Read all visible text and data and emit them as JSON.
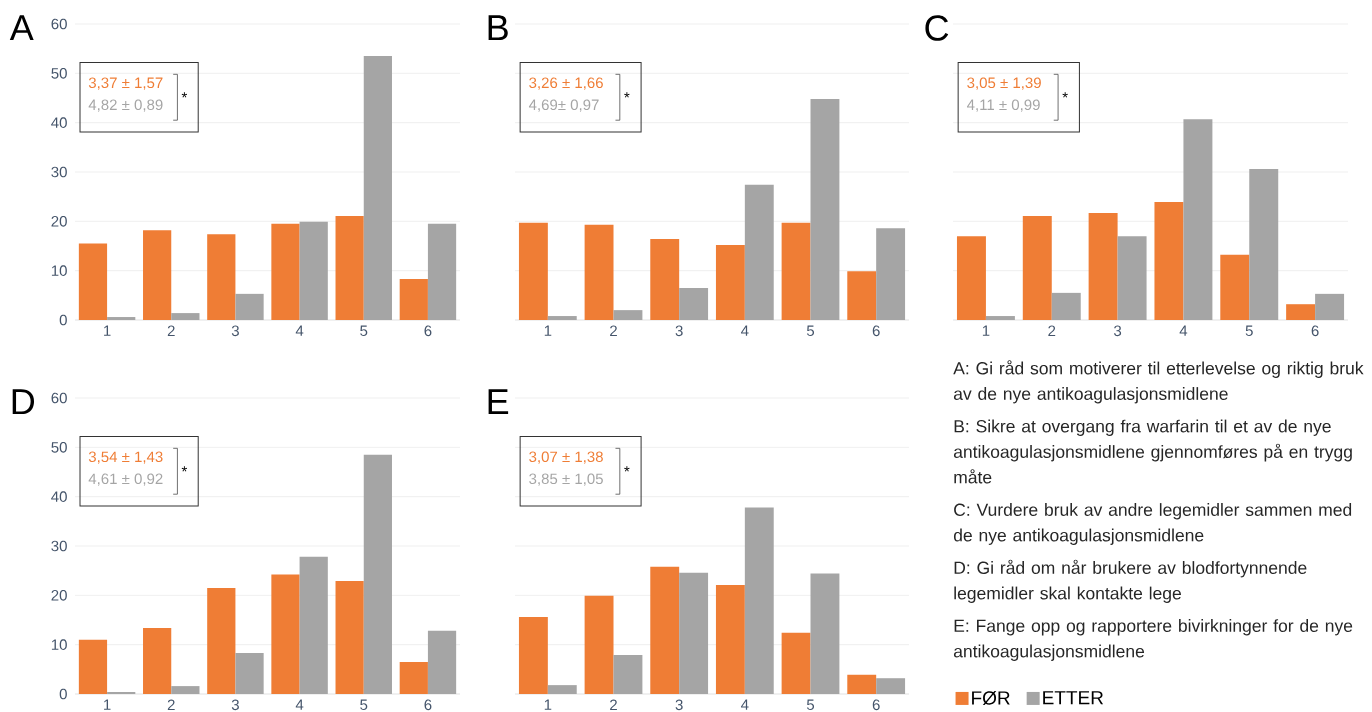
{
  "chart_data": [
    {
      "type": "bar",
      "title": "A",
      "categories": [
        "1",
        "2",
        "3",
        "4",
        "5",
        "6"
      ],
      "series": [
        {
          "color": "#ef7d35",
          "values": [
            15.5,
            18.2,
            17.4,
            19.5,
            21.1,
            8.3
          ]
        },
        {
          "color": "#a5a5a5",
          "values": [
            0.6,
            1.4,
            5.3,
            19.9,
            53.5,
            19.5
          ]
        }
      ],
      "ylim": [
        0,
        60
      ],
      "yticks": [
        0,
        10,
        20,
        30,
        40,
        50,
        60
      ],
      "grid": "y",
      "annotations": [
        "3,37 ± 1,57",
        "4,82 ± 0,89",
        "*"
      ]
    },
    {
      "type": "bar",
      "title": "B",
      "categories": [
        "1",
        "2",
        "3",
        "4",
        "5",
        "6"
      ],
      "series": [
        {
          "color": "#ef7d35",
          "values": [
            19.7,
            19.3,
            16.4,
            15.2,
            19.7,
            9.9
          ]
        },
        {
          "color": "#a5a5a5",
          "values": [
            0.8,
            2.0,
            6.5,
            27.4,
            44.8,
            18.6
          ]
        }
      ],
      "ylim": [
        0,
        60
      ],
      "yticks": [
        0,
        10,
        20,
        30,
        40,
        50,
        60
      ],
      "grid": "y",
      "tick_labels": "x",
      "annotations": [
        "3,26 ± 1,66",
        "4,69± 0,97",
        "*"
      ]
    },
    {
      "type": "bar",
      "title": "C",
      "categories": [
        "1",
        "2",
        "3",
        "4",
        "5",
        "6"
      ],
      "series": [
        {
          "color": "#ef7d35",
          "values": [
            17.0,
            21.1,
            21.7,
            23.9,
            13.2,
            3.2
          ]
        },
        {
          "color": "#a5a5a5",
          "values": [
            0.8,
            5.5,
            17.0,
            40.7,
            30.6,
            5.3
          ]
        }
      ],
      "ylim": [
        0,
        60
      ],
      "yticks": [
        0,
        10,
        20,
        30,
        40,
        50,
        60
      ],
      "grid": "y",
      "tick_labels": "x",
      "annotations": [
        "3,05 ± 1,39",
        "4,11 ± 0,99",
        "*"
      ]
    },
    {
      "type": "bar",
      "title": "D",
      "categories": [
        "1",
        "2",
        "3",
        "4",
        "5",
        "6"
      ],
      "series": [
        {
          "color": "#ef7d35",
          "values": [
            11.0,
            13.4,
            21.5,
            24.2,
            22.9,
            6.5
          ]
        },
        {
          "color": "#a5a5a5",
          "values": [
            0.4,
            1.6,
            8.3,
            27.8,
            48.5,
            12.8
          ]
        }
      ],
      "ylim": [
        0,
        60
      ],
      "yticks": [
        0,
        10,
        20,
        30,
        40,
        50,
        60
      ],
      "grid": "y",
      "annotations": [
        "3,54 ± 1,43",
        "4,61 ± 0,92",
        "*"
      ]
    },
    {
      "type": "bar",
      "title": "E",
      "categories": [
        "1",
        "2",
        "3",
        "4",
        "5",
        "6"
      ],
      "series": [
        {
          "name": "FØR",
          "color": "#ef7d35",
          "values": [
            15.6,
            19.9,
            25.8,
            22.1,
            12.4,
            3.9
          ]
        },
        {
          "name": "ETTER",
          "color": "#a5a5a5",
          "values": [
            1.8,
            7.9,
            24.6,
            37.8,
            24.4,
            3.2
          ]
        }
      ],
      "ylim": [
        0,
        60
      ],
      "yticks": [
        0,
        10,
        20,
        30,
        40,
        50,
        60
      ],
      "grid": "y",
      "tick_labels": "x",
      "legend": "bottom right",
      "annotations": [
        "3,07 ± 1,38",
        "3,85 ± 1,05",
        "*"
      ]
    },
    {
      "type": "other",
      "annotations": [
        "A: Gi råd som motiverer til etterlevelse og riktig bruk av de nye antikoagulasjonsmidlene",
        "B: Sikre at overgang fra warfarin til et av de nye antikoagulasjonsmidlene gjennomføres på en trygg måte",
        "C: Vurdere bruk av andre legemidler sammen med de nye antikoagulasjonsmidlene",
        "D: Gi råd om når brukere av blodfortynnende legemidler skal kontakte lege",
        "E: Fange opp og rapportere bivirkninger for de nye antikoagulasjonsmidlene"
      ]
    }
  ]
}
